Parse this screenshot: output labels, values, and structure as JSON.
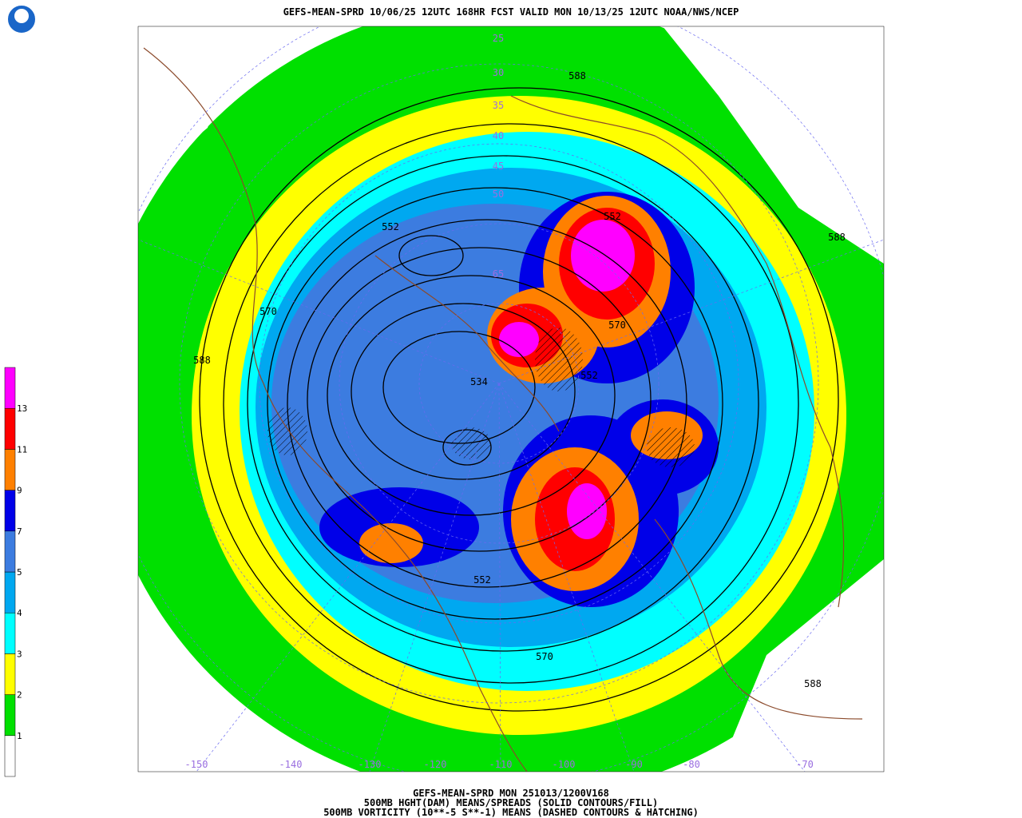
{
  "header": {
    "title": "GEFS-MEAN-SPRD 10/06/25 12UTC 168HR FCST VALID MON 10/13/25 12UTC NOAA/NWS/NCEP"
  },
  "footer": {
    "lines": [
      "GEFS-MEAN-SPRD MON 251013/1200V168",
      "500MB HGHT(DAM) MEANS/SPREADS (SOLID CONTOURS/FILL)",
      "500MB VORTICITY (10**-5 S**-1) MEANS (DASHED CONTOURS & HATCHING)"
    ]
  },
  "colorbar": {
    "levels": [
      1,
      2,
      3,
      4,
      5,
      7,
      9,
      11,
      13
    ],
    "colors": [
      "#ffffff",
      "#00e000",
      "#ffff00",
      "#00ffff",
      "#00a8f0",
      "#3c7ce0",
      "#0000e8",
      "#ff8000",
      "#ff0000",
      "#ff00ff"
    ]
  },
  "contour_labels": [
    "588",
    "588",
    "588",
    "588",
    "552",
    "552",
    "552",
    "570",
    "570",
    "570",
    "534",
    "552"
  ],
  "lat_labels": [
    "25",
    "30",
    "35",
    "40",
    "45",
    "50",
    "65"
  ],
  "lon_labels": [
    "-150",
    "-140",
    "-130",
    "-120",
    "-110",
    "-100",
    "-90",
    "-80",
    "-70"
  ]
}
